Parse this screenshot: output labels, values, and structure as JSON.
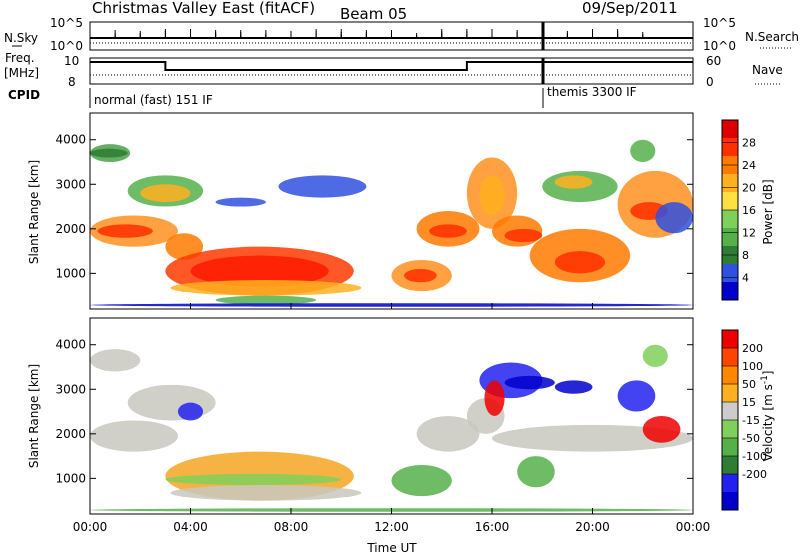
{
  "header": {
    "title": "Christmas Valley East (fitACF)",
    "beam": "Beam 05",
    "date": "09/Sep/2011"
  },
  "params_panel": {
    "nsky_label": "N.Sky",
    "nsky_ticks": [
      "10^5",
      "10^0"
    ],
    "nsearch_label": "N.Search",
    "nsearch_ticks": [
      "10^5",
      "10^0"
    ],
    "freq_label_1": "Freq.",
    "freq_label_2": "[MHz]",
    "freq_ticks": [
      "10",
      "8"
    ],
    "nave_label": "Nave",
    "nave_ticks": [
      "60",
      "0"
    ],
    "cpid_label": "CPID",
    "cpid_modes": [
      {
        "name": "normal (fast) 151 IF",
        "start": "00:00"
      },
      {
        "name": "themis 3300 IF",
        "start": "18:00"
      }
    ],
    "freq_steps_mhz": [
      {
        "from": 0.0,
        "to": 3.0,
        "value": 10.0
      },
      {
        "from": 3.0,
        "to": 15.0,
        "value": 9.2
      },
      {
        "from": 15.0,
        "to": 18.0,
        "value": 10.0
      },
      {
        "from": 18.0,
        "to": 24.0,
        "value": 10.0
      }
    ]
  },
  "chart_data": [
    {
      "type": "heatmap",
      "name": "power",
      "xlabel": "Time UT",
      "ylabel": "Slant Range [km]",
      "xlim": [
        0,
        24
      ],
      "ylim": [
        200,
        4600
      ],
      "yticks": [
        "1000",
        "2000",
        "3000",
        "4000"
      ],
      "colorbar_label": "Power [dB]",
      "colorbar_ticks": [
        "4",
        "8",
        "12",
        "16",
        "20",
        "24",
        "28"
      ],
      "colorscale": [
        "#0000cc",
        "#3050e0",
        "#2e7d32",
        "#55b04a",
        "#7fd05a",
        "#ffe040",
        "#ffb020",
        "#ff7a00",
        "#ff3000",
        "#dd0000"
      ],
      "colorscale_range": [
        0,
        32
      ]
    },
    {
      "type": "heatmap",
      "name": "velocity",
      "xlabel": "Time UT",
      "ylabel": "Slant Range [km]",
      "xlim": [
        0,
        24
      ],
      "ylim": [
        200,
        4600
      ],
      "yticks": [
        "1000",
        "2000",
        "3000",
        "4000"
      ],
      "xticks": [
        "00:00",
        "04:00",
        "08:00",
        "12:00",
        "16:00",
        "20:00",
        "00:00"
      ],
      "colorbar_label": "Velocity [m s",
      "colorbar_label_superscript": "-1",
      "colorbar_ticks": [
        "200",
        "100",
        "50",
        "15",
        "-15",
        "-50",
        "-100",
        "-200"
      ],
      "colorscale": [
        "#0000cc",
        "#2222ee",
        "#2e7d32",
        "#55b04a",
        "#7fd05a",
        "#cccccc",
        "#ffb020",
        "#ff8800",
        "#ff4400",
        "#ee0000"
      ],
      "ground_scatter_color": "#c8c8c0"
    }
  ],
  "colors": {
    "power_main": "#ff5500",
    "velocity_main": "#f5a623",
    "ground": "#c8c8c0"
  }
}
